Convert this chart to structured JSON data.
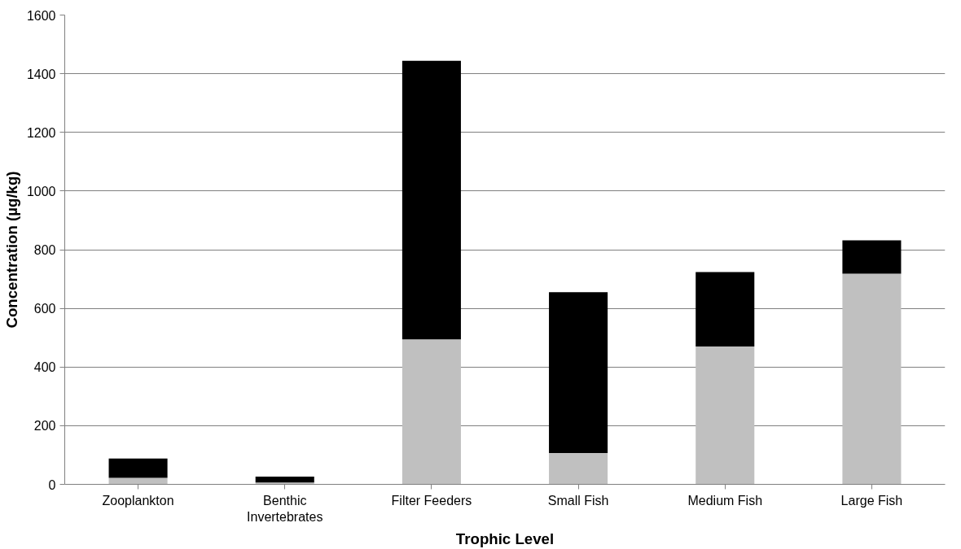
{
  "chart_data": {
    "type": "bar",
    "stacked": true,
    "xlabel": "Trophic Level",
    "ylabel": "Concentration (µg/kg)",
    "categories": [
      "Zooplankton",
      "Benthic\nInvertebrates",
      "Filter Feeders",
      "Small Fish",
      "Medium Fish",
      "Large Fish"
    ],
    "series": [
      {
        "color": "#c0c0c0",
        "values": [
          22,
          6,
          494,
          107,
          470,
          718
        ]
      },
      {
        "color": "#000000",
        "values": [
          66,
          20,
          950,
          548,
          254,
          114
        ]
      }
    ],
    "ylim": [
      0,
      1600
    ],
    "yticks": [
      0,
      200,
      400,
      600,
      800,
      1000,
      1200,
      1400,
      1600
    ],
    "grid": "y"
  }
}
